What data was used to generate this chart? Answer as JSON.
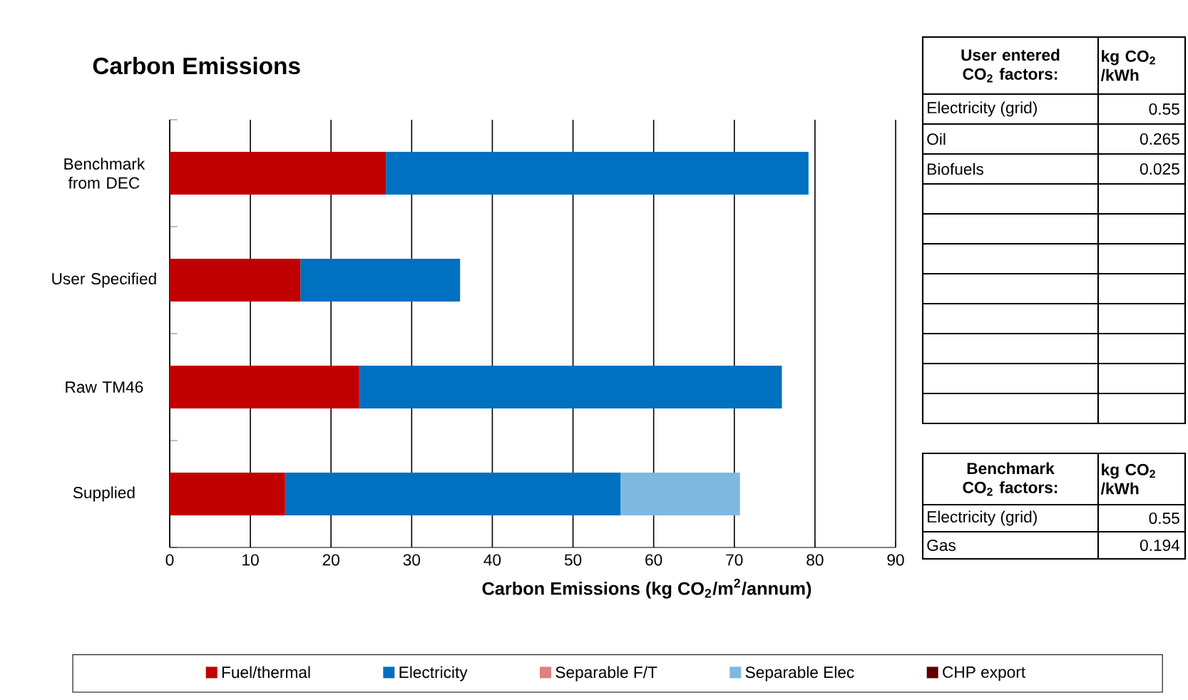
{
  "chart_data": {
    "type": "bar",
    "orientation": "horizontal",
    "stacked": true,
    "title": "Carbon Emissions",
    "xlabel": "Carbon Emissions  (kg CO$_{2}$/m$^{2}$/annum)",
    "categories": [
      "Benchmark from DEC",
      "User Specified",
      "Raw TM46",
      "Supplied"
    ],
    "series": [
      {
        "name": "Fuel/thermal",
        "color": "#c00000",
        "values": [
          26.8,
          16.2,
          23.5,
          14.3
        ]
      },
      {
        "name": "Electricity",
        "color": "#0070c0",
        "values": [
          52.4,
          19.8,
          52.4,
          41.6
        ]
      },
      {
        "name": "Separable F/T",
        "color": "#e08080",
        "values": [
          null,
          null,
          null,
          null
        ]
      },
      {
        "name": "Separable Elec",
        "color": "#80b8e0",
        "values": [
          null,
          null,
          null,
          14.8
        ]
      },
      {
        "name": "CHP export",
        "color": "#600000",
        "values": [
          null,
          null,
          null,
          null
        ]
      }
    ],
    "xlim": [
      0,
      90
    ],
    "xticks": [
      0,
      10,
      20,
      30,
      40,
      50,
      60,
      70,
      80,
      90
    ],
    "grid": "x",
    "legend": "bottom",
    "annotations": [
      "**User entered CO$_{2}$ factors:**",
      "**kg CO$_{2}$ /kWh**",
      "Electricity (grid)",
      "0.55",
      "Oil",
      "0.265",
      "Biofuels",
      "0.025",
      "**Benchmark CO$_{2}$ factors:**",
      "**kg CO$_{2}$ /kWh**",
      "Electricity (grid)",
      "0.55",
      "Gas",
      "0.194"
    ]
  }
}
